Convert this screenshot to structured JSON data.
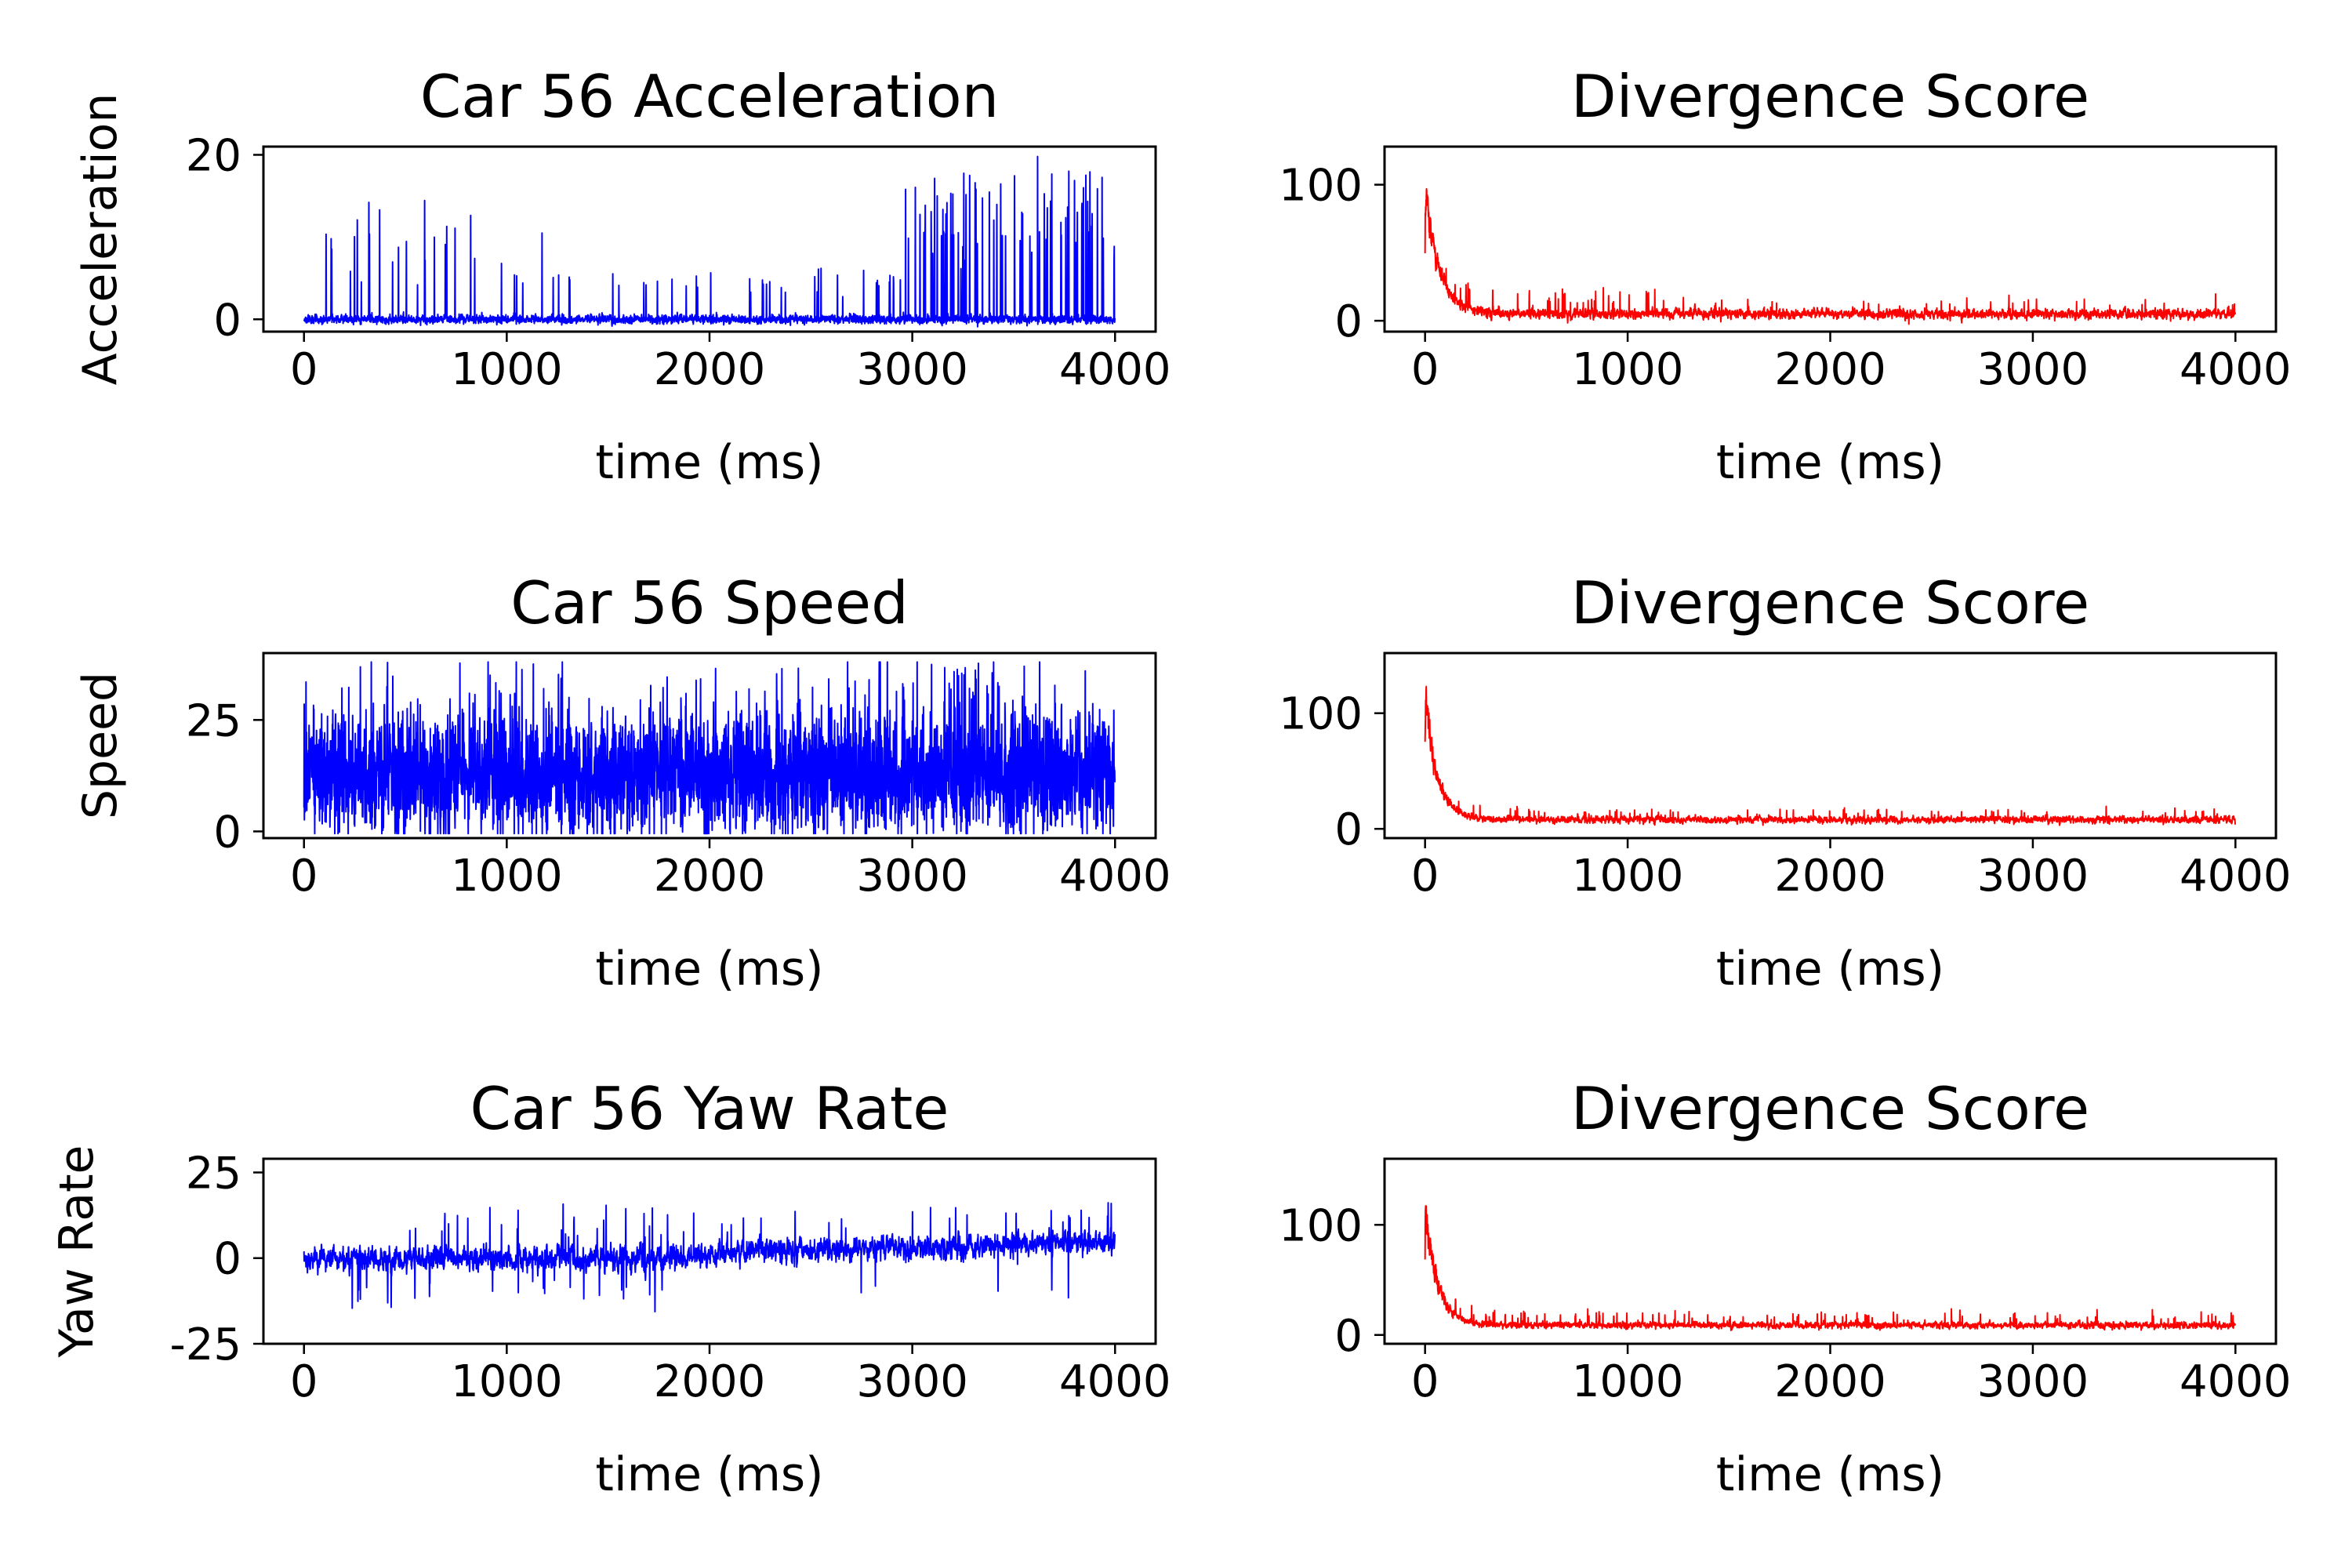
{
  "figure": {
    "background": "#ffffff"
  },
  "chart_data": [
    {
      "type": "line",
      "title": "Car 56 Acceleration",
      "xlabel": "time (ms)",
      "ylabel": "Acceleration",
      "color": "#0000ff",
      "xlim": [
        -200,
        4200
      ],
      "ylim": [
        -1.5,
        21
      ],
      "xticks": [
        0,
        1000,
        2000,
        3000,
        4000
      ],
      "yticks": [
        0,
        20
      ],
      "ytick_labels": [
        "0",
        "20"
      ],
      "signal": {
        "n": 4000,
        "base": 0,
        "noise": 0.35,
        "floor": -1.2,
        "ceil": 19.8,
        "seed": 11,
        "smooth": 0.3,
        "spikes": [
          [
            0.015,
            14.2,
            0.0,
            0.3
          ],
          [
            0.004,
            8,
            0.03,
            0.24
          ],
          [
            0.012,
            6,
            0.24,
            0.72
          ],
          [
            0.012,
            5,
            0.72,
            0.74
          ],
          [
            0.008,
            5.5,
            0.53,
            0.73
          ],
          [
            0.012,
            7,
            0.59,
            0.74
          ],
          [
            0.06,
            18,
            0.74,
            1.0
          ],
          [
            0.02,
            12,
            0.74,
            1.0
          ]
        ]
      },
      "grid": false,
      "legend": "none"
    },
    {
      "type": "line",
      "title": "Divergence Score",
      "xlabel": "time (ms)",
      "ylabel": "",
      "color": "#ff0000",
      "xlim": [
        -200,
        4200
      ],
      "ylim": [
        -8,
        128
      ],
      "xticks": [
        0,
        1000,
        2000,
        3000,
        4000
      ],
      "yticks": [
        0,
        100
      ],
      "ytick_labels": [
        "0",
        "100"
      ],
      "signal": {
        "n": 4000,
        "base": 5,
        "noise": 3,
        "floor": -3,
        "ceil": 125,
        "seed": 23,
        "smooth": 0.5,
        "peak": 120,
        "decay": 70,
        "spikes": [
          [
            0.03,
            18,
            0.02,
            0.3
          ],
          [
            0.015,
            12,
            0.3,
            1.0
          ]
        ]
      },
      "grid": false,
      "legend": "none"
    },
    {
      "type": "line",
      "title": "Car 56 Speed",
      "xlabel": "time (ms)",
      "ylabel": "Speed",
      "color": "#0000ff",
      "xlim": [
        -200,
        4200
      ],
      "ylim": [
        -1.5,
        40
      ],
      "xticks": [
        0,
        1000,
        2000,
        3000,
        4000
      ],
      "yticks": [
        0,
        25
      ],
      "ytick_labels": [
        "0",
        "25"
      ],
      "signal": {
        "n": 4000,
        "base": 12.5,
        "noise": 6.5,
        "floor": -0.5,
        "ceil": 38,
        "seed": 37,
        "smooth": 0.0,
        "spikes": [
          [
            0.03,
            22,
            0.0,
            1.0
          ]
        ]
      },
      "grid": false,
      "legend": "none"
    },
    {
      "type": "line",
      "title": "Divergence Score",
      "xlabel": "time (ms)",
      "ylabel": "",
      "color": "#ff0000",
      "xlim": [
        -200,
        4200
      ],
      "ylim": [
        -8,
        152
      ],
      "xticks": [
        0,
        1000,
        2000,
        3000,
        4000
      ],
      "yticks": [
        0,
        100
      ],
      "ytick_labels": [
        "0",
        "100"
      ],
      "signal": {
        "n": 4000,
        "base": 8,
        "noise": 2.5,
        "floor": -3,
        "ceil": 148,
        "seed": 41,
        "smooth": 0.5,
        "peak": 145,
        "decay": 60,
        "spikes": [
          [
            0.02,
            10,
            0.02,
            1.0
          ]
        ]
      },
      "grid": false,
      "legend": "none"
    },
    {
      "type": "line",
      "title": "Car 56 Yaw Rate",
      "xlabel": "time (ms)",
      "ylabel": "Yaw Rate",
      "color": "#0000ff",
      "xlim": [
        -200,
        4200
      ],
      "ylim": [
        -25,
        29
      ],
      "xticks": [
        0,
        1000,
        2000,
        3000,
        4000
      ],
      "yticks": [
        -25,
        0,
        25
      ],
      "ytick_labels": [
        "-25",
        "0",
        "25"
      ],
      "signal": {
        "n": 4000,
        "base": 0,
        "noise": 3.5,
        "floor": -23,
        "ceil": 27,
        "seed": 53,
        "smooth": 0.6,
        "trend": [
          [
            0.0,
            0.0
          ],
          [
            0.45,
            0.0
          ],
          [
            0.5,
            1.5
          ],
          [
            1.0,
            5.0
          ]
        ],
        "spikes": [
          [
            0.02,
            -16,
            0.03,
            0.15
          ],
          [
            0.02,
            14,
            0.1,
            0.45
          ],
          [
            0.015,
            -14,
            0.15,
            0.45
          ],
          [
            0.012,
            12,
            0.45,
            1.0
          ],
          [
            0.004,
            -14,
            0.45,
            1.0
          ]
        ]
      },
      "grid": false,
      "legend": "none"
    },
    {
      "type": "line",
      "title": "Divergence Score",
      "xlabel": "time (ms)",
      "ylabel": "",
      "color": "#ff0000",
      "xlim": [
        -200,
        4200
      ],
      "ylim": [
        -8,
        160
      ],
      "xticks": [
        0,
        1000,
        2000,
        3000,
        4000
      ],
      "yticks": [
        0,
        100
      ],
      "ytick_labels": [
        "0",
        "100"
      ],
      "signal": {
        "n": 4000,
        "base": 9,
        "noise": 2.5,
        "floor": -3,
        "ceil": 152,
        "seed": 67,
        "smooth": 0.5,
        "peak": 150,
        "decay": 60,
        "spikes": [
          [
            0.025,
            12,
            0.02,
            1.0
          ]
        ]
      },
      "grid": false,
      "legend": "none"
    }
  ]
}
